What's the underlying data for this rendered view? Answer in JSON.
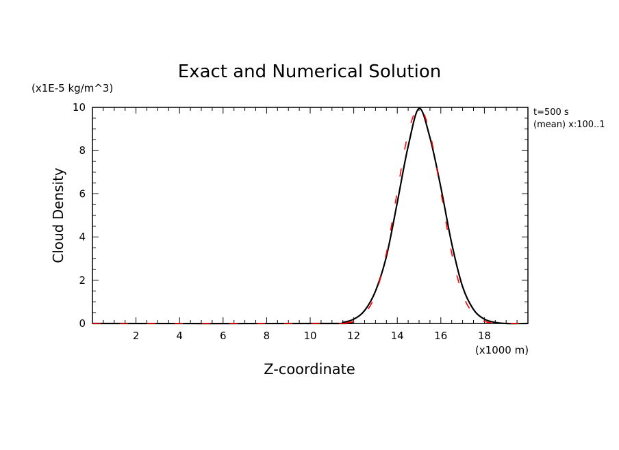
{
  "chart_data": {
    "type": "line",
    "title": "Exact and Numerical Solution",
    "ylabel": "Cloud Density",
    "xlabel": "Z-coordinate",
    "y_unit": "(x1E-5 kg/m^3)",
    "x_unit": "(x1000 m)",
    "annotations": [
      "t=500 s",
      "(mean) x:100..1"
    ],
    "xlim": [
      0,
      20
    ],
    "ylim": [
      0,
      10
    ],
    "x_ticks": [
      2,
      4,
      6,
      8,
      10,
      12,
      14,
      16,
      18
    ],
    "y_ticks": [
      0,
      2,
      4,
      6,
      8,
      10
    ],
    "grid": false,
    "series": [
      {
        "style": "solid",
        "color": "#000000",
        "x": [
          0,
          11.0,
          11.5,
          12.0,
          12.5,
          13.0,
          13.5,
          14.0,
          14.5,
          15.0,
          15.5,
          16.0,
          16.5,
          17.0,
          17.5,
          18.0,
          18.5,
          19.0,
          20
        ],
        "y": [
          0,
          0.0,
          0.05,
          0.2,
          0.6,
          1.5,
          3.1,
          5.6,
          8.2,
          9.95,
          8.6,
          6.3,
          3.7,
          1.7,
          0.65,
          0.2,
          0.05,
          0.0,
          0
        ]
      },
      {
        "style": "dashed",
        "color": "#ff0000",
        "x": [
          0,
          11.0,
          11.5,
          12.0,
          12.5,
          13.0,
          13.5,
          14.0,
          14.5,
          15.0,
          15.5,
          16.0,
          16.5,
          17.0,
          17.5,
          18.0,
          18.5,
          19.0,
          20
        ],
        "y": [
          0,
          0.0,
          0.02,
          0.1,
          0.45,
          1.35,
          3.25,
          6.1,
          8.8,
          10.0,
          8.8,
          6.1,
          3.25,
          1.35,
          0.45,
          0.1,
          0.02,
          0.0,
          0
        ]
      }
    ]
  }
}
